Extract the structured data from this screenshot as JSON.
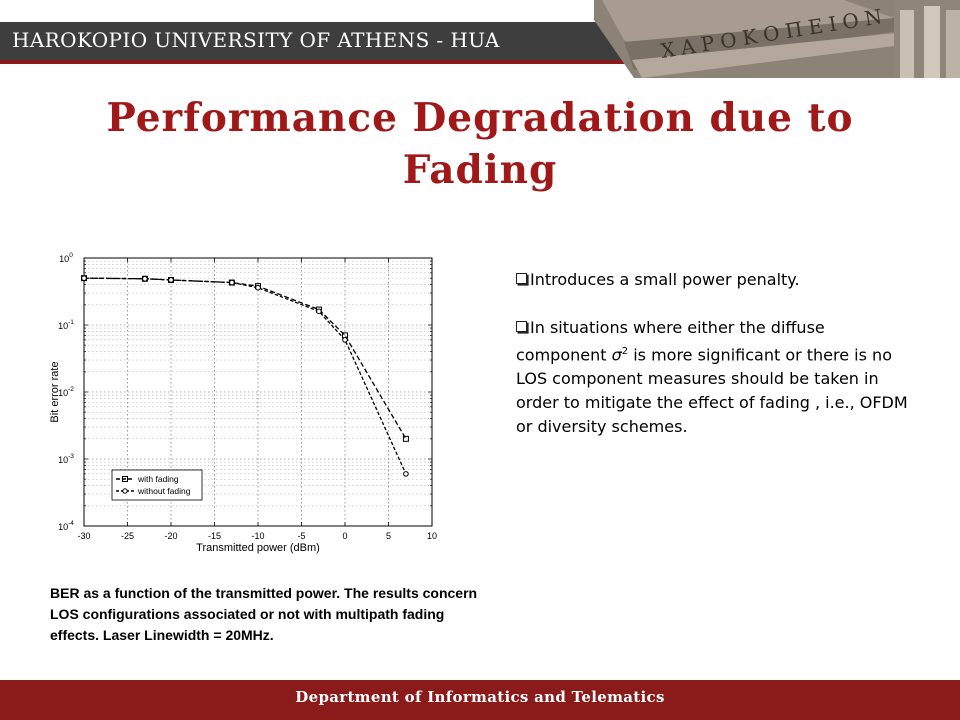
{
  "header": {
    "university": "HAROKOPIO UNIVERSITY OF ATHENS - HUA",
    "inscription": "ΧΑΡΟΚΟΠΕΙΟΝ"
  },
  "title": "Performance Degradation due to Fading",
  "bullets": [
    {
      "icon": "checkbox-bullet-icon",
      "text": "Introduces a small power penalty."
    },
    {
      "icon": "checkbox-bullet-icon",
      "pre": "In situations where either the diffuse component ",
      "sigma": "σ",
      "sup": "2",
      "post": " is more significant or there is no LOS component measures should be taken in order to mitigate the effect of fading , i.e., OFDM or diversity schemes."
    }
  ],
  "caption": "BER as a function of the transmitted power. The results concern LOS configurations associated or not with multipath fading effects. Laser Linewidth = 20MHz.",
  "footer": "Department of Informatics and Telematics",
  "colors": {
    "accent": "#a01818",
    "footer": "#8b1a1a",
    "header_bar": "#3e3e3e"
  },
  "chart_data": {
    "type": "line",
    "xlabel": "Transmitted power (dBm)",
    "ylabel": "Bit error rate",
    "xlim": [
      -30,
      10
    ],
    "ylim": [
      0.0001,
      1
    ],
    "y_scale": "log",
    "grid": true,
    "legend_position": "lower-left",
    "xticks": [
      "-30",
      "-25",
      "-20",
      "-15",
      "-10",
      "-5",
      "0",
      "5",
      "10"
    ],
    "yticks": [
      {
        "base": "10",
        "exp": "0"
      },
      {
        "base": "10",
        "exp": "-1"
      },
      {
        "base": "10",
        "exp": "-2"
      },
      {
        "base": "10",
        "exp": "-3"
      },
      {
        "base": "10",
        "exp": "-4"
      }
    ],
    "series": [
      {
        "name": "with fading",
        "marker": "square",
        "x": [
          -30,
          -23,
          -20,
          -13,
          -10,
          -3,
          0,
          7
        ],
        "y": [
          0.5,
          0.49,
          0.47,
          0.43,
          0.38,
          0.17,
          0.07,
          0.002
        ]
      },
      {
        "name": "without fading",
        "marker": "circle",
        "x": [
          -30,
          -23,
          -20,
          -13,
          -10,
          -3,
          0,
          7
        ],
        "y": [
          0.5,
          0.49,
          0.47,
          0.43,
          0.36,
          0.16,
          0.06,
          0.0006
        ]
      }
    ]
  }
}
